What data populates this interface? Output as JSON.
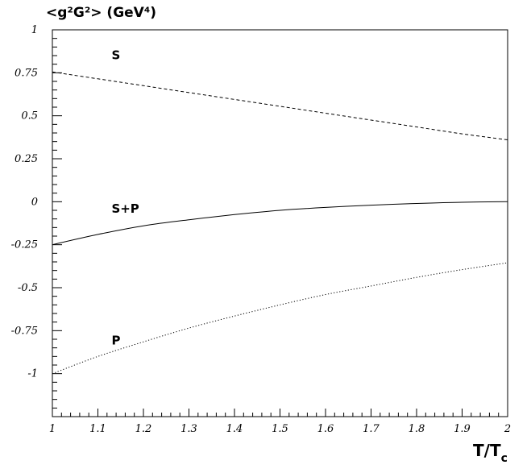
{
  "chart_data": {
    "type": "line",
    "title": "<g²G²> (GeV⁴)",
    "xlabel": "T/T",
    "xlabel_sub": "c",
    "ylabel": "",
    "xlim": [
      1,
      2
    ],
    "ylim": [
      -1.25,
      1
    ],
    "x_ticks": [
      1,
      1.1,
      1.2,
      1.3,
      1.4,
      1.5,
      1.6,
      1.7,
      1.8,
      1.9,
      2
    ],
    "x_tick_labels": [
      "1",
      "1.1",
      "1.2",
      "1.3",
      "1.4",
      "1.5",
      "1.6",
      "1.7",
      "1.8",
      "1.9",
      "2"
    ],
    "y_ticks": [
      1,
      0.75,
      0.5,
      0.25,
      0,
      -0.25,
      -0.5,
      -0.75,
      -1
    ],
    "y_tick_labels": [
      "1",
      "0.75",
      "0.5",
      "0.25",
      "0",
      "-0.25",
      "-0.5",
      "-0.75",
      "-1"
    ],
    "grid": false,
    "x": [
      1.0,
      1.1,
      1.2,
      1.3,
      1.4,
      1.5,
      1.6,
      1.7,
      1.8,
      1.9,
      2.0
    ],
    "series": [
      {
        "name": "S",
        "style": "dashed",
        "values": [
          0.755,
          0.715,
          0.675,
          0.635,
          0.595,
          0.555,
          0.515,
          0.475,
          0.435,
          0.395,
          0.36
        ],
        "label_at": [
          1.13,
          0.83
        ]
      },
      {
        "name": "S+P",
        "style": "solid",
        "values": [
          -0.25,
          -0.19,
          -0.14,
          -0.105,
          -0.075,
          -0.05,
          -0.033,
          -0.02,
          -0.01,
          -0.003,
          0.0
        ],
        "label_at": [
          1.13,
          -0.065
        ]
      },
      {
        "name": "P",
        "style": "dotted",
        "values": [
          -1.0,
          -0.9,
          -0.815,
          -0.735,
          -0.665,
          -0.6,
          -0.54,
          -0.49,
          -0.44,
          -0.395,
          -0.355
        ],
        "label_at": [
          1.13,
          -0.83
        ]
      }
    ]
  }
}
